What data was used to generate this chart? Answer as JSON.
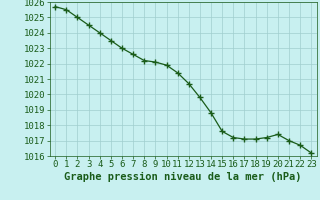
{
  "x": [
    0,
    1,
    2,
    3,
    4,
    5,
    6,
    7,
    8,
    9,
    10,
    11,
    12,
    13,
    14,
    15,
    16,
    17,
    18,
    19,
    20,
    21,
    22,
    23
  ],
  "y": [
    1025.7,
    1025.5,
    1025.0,
    1024.5,
    1024.0,
    1023.5,
    1023.0,
    1022.6,
    1022.2,
    1022.1,
    1021.9,
    1021.4,
    1020.7,
    1019.8,
    1018.8,
    1017.6,
    1017.2,
    1017.1,
    1017.1,
    1017.2,
    1017.4,
    1017.0,
    1016.7,
    1016.2
  ],
  "ylim": [
    1016,
    1026
  ],
  "yticks": [
    1016,
    1017,
    1018,
    1019,
    1020,
    1021,
    1022,
    1023,
    1024,
    1025,
    1026
  ],
  "xticks": [
    0,
    1,
    2,
    3,
    4,
    5,
    6,
    7,
    8,
    9,
    10,
    11,
    12,
    13,
    14,
    15,
    16,
    17,
    18,
    19,
    20,
    21,
    22,
    23
  ],
  "xlabel": "Graphe pression niveau de la mer (hPa)",
  "line_color": "#1a5c1a",
  "marker": "+",
  "marker_size": 4,
  "marker_color": "#1a5c1a",
  "bg_color": "#c8f0f0",
  "grid_color": "#a0cece",
  "tick_color": "#1a5c1a",
  "label_color": "#1a5c1a",
  "tick_fontsize": 6.5,
  "xlabel_fontsize": 7.5,
  "line_width": 0.9
}
